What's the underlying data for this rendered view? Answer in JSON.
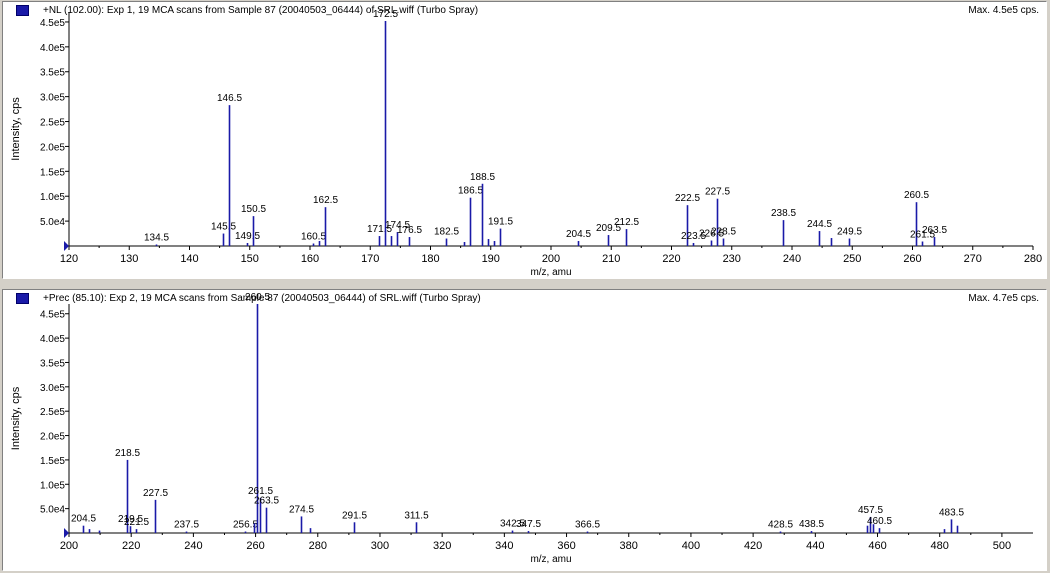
{
  "panels": [
    {
      "title": "+NL (102.00): Exp 1, 19 MCA scans from Sample 87 (20040503_06444) of SRL.wiff (Turbo Spray)",
      "max_label": "Max. 4.5e5 cps."
    },
    {
      "title": "+Prec (85.10): Exp 2, 19 MCA scans from Sample 87 (20040503_06444) of SRL.wiff (Turbo Spray)",
      "max_label": "Max. 4.7e5 cps."
    }
  ],
  "colors": {
    "peak": "#1a1aa8",
    "axis": "#000000",
    "marker": "#1a1aa8"
  },
  "chart_data": [
    {
      "type": "bar",
      "title": "+NL (102.00): Exp 1, 19 MCA scans from Sample 87 (20040503_06444) of SRL.wiff (Turbo Spray)",
      "xlabel": "m/z, amu",
      "ylabel": "Intensity, cps",
      "xlim": [
        120,
        280
      ],
      "ylim": [
        0,
        470000
      ],
      "xticks": [
        120,
        130,
        140,
        150,
        160,
        170,
        180,
        190,
        200,
        210,
        220,
        230,
        240,
        250,
        260,
        270,
        280
      ],
      "yticks": [
        {
          "value": 50000,
          "label": "5.0e4"
        },
        {
          "value": 100000,
          "label": "1.0e5"
        },
        {
          "value": 150000,
          "label": "1.5e5"
        },
        {
          "value": 200000,
          "label": "2.0e5"
        },
        {
          "value": 250000,
          "label": "2.5e5"
        },
        {
          "value": 300000,
          "label": "3.0e5"
        },
        {
          "value": 350000,
          "label": "3.5e5"
        },
        {
          "value": 400000,
          "label": "4.0e5"
        },
        {
          "value": 450000,
          "label": "4.5e5"
        }
      ],
      "peaks": [
        {
          "x": 134.5,
          "y": 3000,
          "label": "134.5"
        },
        {
          "x": 145.5,
          "y": 25000,
          "label": "145.5"
        },
        {
          "x": 146.5,
          "y": 283000,
          "label": "146.5"
        },
        {
          "x": 149.5,
          "y": 6000,
          "label": "149.5"
        },
        {
          "x": 150.5,
          "y": 60000,
          "label": "150.5"
        },
        {
          "x": 160.5,
          "y": 5000,
          "label": "160.5"
        },
        {
          "x": 161.5,
          "y": 10000,
          "label": ""
        },
        {
          "x": 162.5,
          "y": 78000,
          "label": "162.5"
        },
        {
          "x": 171.5,
          "y": 20000,
          "label": "171.5"
        },
        {
          "x": 172.5,
          "y": 452000,
          "label": "172.5"
        },
        {
          "x": 173.5,
          "y": 20000,
          "label": ""
        },
        {
          "x": 174.5,
          "y": 28000,
          "label": "174.5"
        },
        {
          "x": 176.5,
          "y": 18000,
          "label": "176.5"
        },
        {
          "x": 182.5,
          "y": 15000,
          "label": "182.5"
        },
        {
          "x": 185.5,
          "y": 8000,
          "label": ""
        },
        {
          "x": 186.5,
          "y": 97000,
          "label": "186.5"
        },
        {
          "x": 188.5,
          "y": 125000,
          "label": "188.5"
        },
        {
          "x": 189.5,
          "y": 14000,
          "label": ""
        },
        {
          "x": 190.5,
          "y": 10000,
          "label": ""
        },
        {
          "x": 191.5,
          "y": 35000,
          "label": "191.5"
        },
        {
          "x": 204.5,
          "y": 10000,
          "label": "204.5"
        },
        {
          "x": 209.5,
          "y": 22000,
          "label": "209.5"
        },
        {
          "x": 212.5,
          "y": 34000,
          "label": "212.5"
        },
        {
          "x": 222.5,
          "y": 82000,
          "label": "222.5"
        },
        {
          "x": 223.5,
          "y": 6000,
          "label": "223.5"
        },
        {
          "x": 226.5,
          "y": 11000,
          "label": "226.5"
        },
        {
          "x": 227.5,
          "y": 95000,
          "label": "227.5"
        },
        {
          "x": 228.5,
          "y": 15000,
          "label": "228.5"
        },
        {
          "x": 238.5,
          "y": 52000,
          "label": "238.5"
        },
        {
          "x": 244.5,
          "y": 30000,
          "label": "244.5"
        },
        {
          "x": 246.5,
          "y": 16000,
          "label": ""
        },
        {
          "x": 249.5,
          "y": 15000,
          "label": "249.5"
        },
        {
          "x": 260.5,
          "y": 88000,
          "label": "260.5"
        },
        {
          "x": 261.5,
          "y": 9000,
          "label": "261.5"
        },
        {
          "x": 263.5,
          "y": 18000,
          "label": "263.5"
        }
      ]
    },
    {
      "type": "bar",
      "title": "+Prec (85.10): Exp 2, 19 MCA scans from Sample 87 (20040503_06444) of SRL.wiff (Turbo Spray)",
      "xlabel": "m/z, amu",
      "ylabel": "Intensity, cps",
      "xlim": [
        200,
        510
      ],
      "ylim": [
        0,
        470000
      ],
      "xticks": [
        200,
        220,
        240,
        260,
        280,
        300,
        320,
        340,
        360,
        380,
        400,
        420,
        440,
        460,
        480,
        500
      ],
      "yticks": [
        {
          "value": 50000,
          "label": "5.0e4"
        },
        {
          "value": 100000,
          "label": "1.0e5"
        },
        {
          "value": 150000,
          "label": "1.5e5"
        },
        {
          "value": 200000,
          "label": "2.0e5"
        },
        {
          "value": 250000,
          "label": "2.5e5"
        },
        {
          "value": 300000,
          "label": "3.0e5"
        },
        {
          "value": 350000,
          "label": "3.5e5"
        },
        {
          "value": 400000,
          "label": "4.0e5"
        },
        {
          "value": 450000,
          "label": "4.5e5"
        }
      ],
      "peaks": [
        {
          "x": 204.5,
          "y": 15000,
          "label": "204.5"
        },
        {
          "x": 206.5,
          "y": 8000,
          "label": ""
        },
        {
          "x": 209.5,
          "y": 5000,
          "label": ""
        },
        {
          "x": 218.5,
          "y": 150000,
          "label": "218.5"
        },
        {
          "x": 219.5,
          "y": 14000,
          "label": "219.5"
        },
        {
          "x": 221.5,
          "y": 8000,
          "label": "221.5"
        },
        {
          "x": 227.5,
          "y": 68000,
          "label": "227.5"
        },
        {
          "x": 237.5,
          "y": 3000,
          "label": "237.5"
        },
        {
          "x": 256.5,
          "y": 3000,
          "label": "256.5"
        },
        {
          "x": 259.5,
          "y": 20000,
          "label": ""
        },
        {
          "x": 260.5,
          "y": 470000,
          "label": "260.5"
        },
        {
          "x": 261.5,
          "y": 72000,
          "label": "261.5"
        },
        {
          "x": 263.5,
          "y": 52000,
          "label": "263.5"
        },
        {
          "x": 274.5,
          "y": 34000,
          "label": "274.5"
        },
        {
          "x": 277.5,
          "y": 10000,
          "label": ""
        },
        {
          "x": 291.5,
          "y": 22000,
          "label": "291.5"
        },
        {
          "x": 311.5,
          "y": 22000,
          "label": "311.5"
        },
        {
          "x": 342.5,
          "y": 5000,
          "label": "342.5"
        },
        {
          "x": 347.5,
          "y": 4000,
          "label": "347.5"
        },
        {
          "x": 366.5,
          "y": 3000,
          "label": "366.5"
        },
        {
          "x": 428.5,
          "y": 3000,
          "label": "428.5"
        },
        {
          "x": 438.5,
          "y": 4000,
          "label": "438.5"
        },
        {
          "x": 456.5,
          "y": 15000,
          "label": ""
        },
        {
          "x": 457.5,
          "y": 33000,
          "label": "457.5"
        },
        {
          "x": 458.5,
          "y": 18000,
          "label": ""
        },
        {
          "x": 460.5,
          "y": 10000,
          "label": "460.5"
        },
        {
          "x": 481.5,
          "y": 8000,
          "label": ""
        },
        {
          "x": 483.5,
          "y": 28000,
          "label": "483.5"
        },
        {
          "x": 485.5,
          "y": 15000,
          "label": ""
        }
      ]
    }
  ]
}
